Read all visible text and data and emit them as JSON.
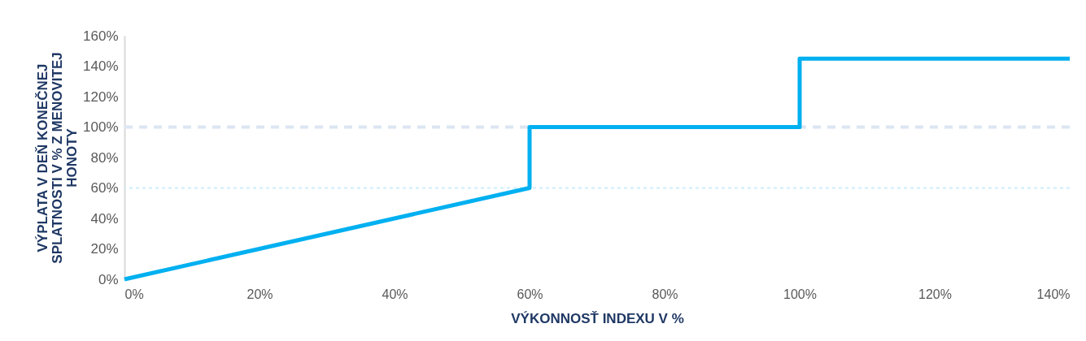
{
  "chart_data": {
    "type": "line",
    "xlabel": "VÝKONNOSŤ INDEXU V %",
    "ylabel": "VÝPLATA V DEŇ KONEČNEJ SPLATNOSTI V % Z MENOVITEJ HONOTY",
    "x": [
      0,
      60,
      60,
      100,
      100,
      140
    ],
    "series": [
      {
        "color": "#00b0f0",
        "values": [
          0,
          60,
          100,
          100,
          145,
          145
        ]
      }
    ],
    "xlim": [
      0,
      140
    ],
    "xticks": [
      {
        "value": 0,
        "label": "0%"
      },
      {
        "value": 20,
        "label": "20%"
      },
      {
        "value": 40,
        "label": "40%"
      },
      {
        "value": 60,
        "label": "60%"
      },
      {
        "value": 80,
        "label": "80%"
      },
      {
        "value": 100,
        "label": "100%"
      },
      {
        "value": 120,
        "label": "120%"
      },
      {
        "value": 140,
        "label": "140%"
      }
    ],
    "ylim": [
      0,
      160
    ],
    "yticks": [
      {
        "value": 0,
        "label": "0%"
      },
      {
        "value": 20,
        "label": "20%"
      },
      {
        "value": 40,
        "label": "40%"
      },
      {
        "value": 60,
        "label": "60%"
      },
      {
        "value": 80,
        "label": "80%"
      },
      {
        "value": 100,
        "label": "100%"
      },
      {
        "value": 120,
        "label": "120%"
      },
      {
        "value": 140,
        "label": "140%"
      },
      {
        "value": 160,
        "label": "160%"
      }
    ],
    "ref_lines": [
      {
        "axis": "y",
        "value": 100,
        "color": "#dce6f2",
        "line_style": "dashed"
      },
      {
        "axis": "y",
        "value": 60,
        "color": "#cdeefb",
        "line_style": "dotted"
      }
    ],
    "grid": false,
    "marker": "none",
    "line_style": "solid"
  }
}
